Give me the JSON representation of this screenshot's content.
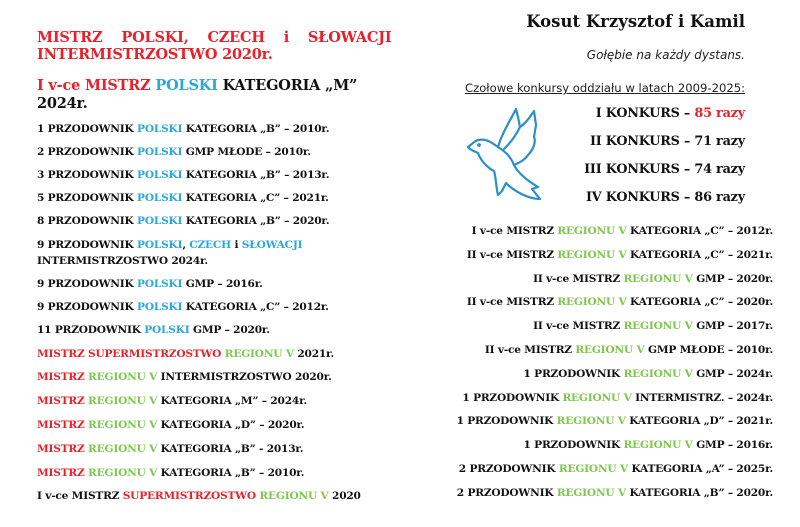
{
  "colors": {
    "r": "#e8202a",
    "b": "#2aa7de",
    "g": "#7dc74f",
    "k": "#111111"
  },
  "left": {
    "title": [
      [
        [
          "MISTRZ POLSKI, CZECH i SŁOWACJI",
          "r"
        ]
      ],
      [
        [
          "INTERMISTRZOSTWO 2020r.",
          "r"
        ]
      ]
    ],
    "subtitle": [
      [
        [
          "I v-ce MISTRZ ",
          "r"
        ],
        [
          "POLSKI",
          "b"
        ],
        [
          " KATEGORIA „M”",
          "k"
        ]
      ],
      [
        [
          "2024r.",
          "k"
        ]
      ]
    ],
    "items": [
      [
        [
          "1 PRZODOWNIK ",
          "k"
        ],
        [
          "POLSKI",
          "b"
        ],
        [
          " KATEGORIA „B” – 2010r.",
          "k"
        ]
      ],
      [
        [
          "2 PRZODOWNIK ",
          "k"
        ],
        [
          "POLSKI",
          "b"
        ],
        [
          " GMP MŁODE – 2010r.",
          "k"
        ]
      ],
      [
        [
          "3 PRZODOWNIK ",
          "k"
        ],
        [
          "POLSKI",
          "b"
        ],
        [
          " KATEGORIA „B” – 2013r.",
          "k"
        ]
      ],
      [
        [
          "5 PRZODOWNIK ",
          "k"
        ],
        [
          "POLSKI",
          "b"
        ],
        [
          " KATEGORIA „C” – 2021r.",
          "k"
        ]
      ],
      [
        [
          "8 PRZODOWNIK ",
          "k"
        ],
        [
          "POLSKI",
          "b"
        ],
        [
          " KATEGORIA „B” – 2020r.",
          "k"
        ]
      ],
      [
        [
          "9 PRZODOWNIK ",
          "k"
        ],
        [
          "POLSKI",
          "b"
        ],
        [
          ", ",
          "k"
        ],
        [
          "CZECH",
          "b"
        ],
        [
          " i ",
          "k"
        ],
        [
          "SŁOWACJI",
          "b"
        ]
      ],
      [
        [
          "INTERMISTRZOSTWO 2024r.",
          "k"
        ]
      ],
      [
        [
          "9 PRZODOWNIK ",
          "k"
        ],
        [
          "POLSKI",
          "b"
        ],
        [
          " GMP – 2016r.",
          "k"
        ]
      ],
      [
        [
          "9 PRZODOWNIK ",
          "k"
        ],
        [
          "POLSKI",
          "b"
        ],
        [
          " KATEGORIA „C” – 2012r.",
          "k"
        ]
      ],
      [
        [
          "11 PRZODOWNIK ",
          "k"
        ],
        [
          "POLSKI",
          "b"
        ],
        [
          " GMP – 2020r.",
          "k"
        ]
      ],
      [
        [
          "MISTRZ SUPERMISTRZOSTWO ",
          "r"
        ],
        [
          "REGIONU V",
          "g"
        ],
        [
          " 2021r.",
          "k"
        ]
      ],
      [
        [
          "MISTRZ ",
          "r"
        ],
        [
          "REGIONU V",
          "g"
        ],
        [
          " INTERMISTRZOSTWO 2020r.",
          "k"
        ]
      ],
      [
        [
          "MISTRZ ",
          "r"
        ],
        [
          "REGIONU V",
          "g"
        ],
        [
          " KATEGORIA „M” – 2024r.",
          "k"
        ]
      ],
      [
        [
          "MISTRZ ",
          "r"
        ],
        [
          "REGIONU V",
          "g"
        ],
        [
          " KATEGORIA „D” – 2020r.",
          "k"
        ]
      ],
      [
        [
          "MISTRZ ",
          "r"
        ],
        [
          "REGIONU V",
          "g"
        ],
        [
          " KATEGORIA „B” - 2013r.",
          "k"
        ]
      ],
      [
        [
          "MISTRZ ",
          "r"
        ],
        [
          "REGIONU V",
          "g"
        ],
        [
          " KATEGORIA „B” – 2010r.",
          "k"
        ]
      ],
      [
        [
          "I v-ce MISTRZ ",
          "k"
        ],
        [
          "SUPERMISTRZOSTWO ",
          "r"
        ],
        [
          "REGIONU V",
          "g"
        ],
        [
          " 2020",
          "k"
        ]
      ]
    ]
  },
  "right": {
    "owner": "Kosut Krzysztof i Kamil",
    "motto": "Gołębie na każdy dystans.",
    "heading": "Czołowe konkursy oddziału w latach 2009-2025:",
    "dove_icon": "dove-icon",
    "konkursy": [
      [
        [
          "I KONKURS – ",
          "k"
        ],
        [
          "85 razy",
          "r"
        ]
      ],
      [
        [
          "II KONKURS – 71 razy",
          "k"
        ]
      ],
      [
        [
          "III KONKURS – 74 razy",
          "k"
        ]
      ],
      [
        [
          "IV KONKURS – 86 razy",
          "k"
        ]
      ]
    ],
    "items": [
      [
        [
          "I v-ce MISTRZ ",
          "k"
        ],
        [
          "REGIONU V",
          "g"
        ],
        [
          " KATEGORIA „C” – 2012r.",
          "k"
        ]
      ],
      [
        [
          "II v-ce MISTRZ ",
          "k"
        ],
        [
          "REGIONU V",
          "g"
        ],
        [
          " KATEGORIA „C” – 2021r.",
          "k"
        ]
      ],
      [
        [
          "II v-ce MISTRZ ",
          "k"
        ],
        [
          "REGIONU V",
          "g"
        ],
        [
          " GMP – 2020r.",
          "k"
        ]
      ],
      [
        [
          "II v-ce MISTRZ ",
          "k"
        ],
        [
          "REGIONU V",
          "g"
        ],
        [
          " KATEGORIA „C” – 2020r.",
          "k"
        ]
      ],
      [
        [
          "II v-ce MISTRZ ",
          "k"
        ],
        [
          "REGIONU V",
          "g"
        ],
        [
          " GMP – 2017r.",
          "k"
        ]
      ],
      [
        [
          "II v-ce MISTRZ ",
          "k"
        ],
        [
          "REGIONU V",
          "g"
        ],
        [
          " GMP MŁODE – 2010r.",
          "k"
        ]
      ],
      [
        [
          "1 PRZODOWNIK ",
          "k"
        ],
        [
          "REGIONU V",
          "g"
        ],
        [
          " GMP – 2024r.",
          "k"
        ]
      ],
      [
        [
          "1 PRZODOWNIK ",
          "k"
        ],
        [
          "REGIONU V",
          "g"
        ],
        [
          " INTERMISTRZ. – 2024r.",
          "k"
        ]
      ],
      [
        [
          "1 PRZODOWNIK ",
          "k"
        ],
        [
          "REGIONU V",
          "g"
        ],
        [
          " KATEGORIA „D” – 2021r.",
          "k"
        ]
      ],
      [
        [
          "1 PRZODOWNIK ",
          "k"
        ],
        [
          "REGIONU V",
          "g"
        ],
        [
          " GMP – 2016r.",
          "k"
        ]
      ],
      [
        [
          "2 PRZODOWNIK ",
          "k"
        ],
        [
          "REGIONU V",
          "g"
        ],
        [
          " KATEGORIA „A” – 2025r.",
          "k"
        ]
      ],
      [
        [
          "2 PRZODOWNIK ",
          "k"
        ],
        [
          "REGIONU V",
          "g"
        ],
        [
          " KATEGORIA „B” – 2020r.",
          "k"
        ]
      ]
    ]
  }
}
